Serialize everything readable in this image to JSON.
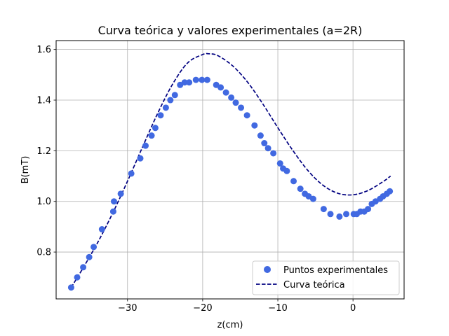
{
  "chart_data": {
    "type": "scatter",
    "title": "Curva teórica y valores experimentales (a=2R)",
    "xlabel": "z(cm)",
    "ylabel": "B(mT)",
    "xlim": [
      -39.5,
      6.8
    ],
    "ylim": [
      0.615,
      1.635
    ],
    "xticks": [
      -30,
      -20,
      -10,
      0
    ],
    "xtick_labels": [
      "−30",
      "−20",
      "−10",
      "0"
    ],
    "yticks": [
      0.8,
      1.0,
      1.2,
      1.4,
      1.6
    ],
    "ytick_labels": [
      "0.8",
      "1.0",
      "1.2",
      "1.4",
      "1.6"
    ],
    "grid": true,
    "legend_position": "bottom-right",
    "series": [
      {
        "name": "Puntos experimentales",
        "kind": "scatter",
        "color": "#4169e1",
        "x": [
          -37.5,
          -36.7,
          -35.9,
          -35.1,
          -34.5,
          -33.4,
          -31.9,
          -31.8,
          -30.9,
          -29.5,
          -28.3,
          -27.6,
          -26.8,
          -26.3,
          -25.6,
          -24.9,
          -24.3,
          -23.7,
          -23.0,
          -22.4,
          -21.8,
          -20.9,
          -20.1,
          -19.4,
          -18.2,
          -17.6,
          -16.9,
          -16.2,
          -15.6,
          -14.9,
          -14.1,
          -13.1,
          -12.3,
          -11.8,
          -11.3,
          -10.6,
          -9.7,
          -9.3,
          -8.8,
          -7.9,
          -7.0,
          -6.4,
          -5.9,
          -5.3,
          -3.9,
          -3.0,
          -1.8,
          -0.9,
          0.1,
          0.5,
          1.0,
          1.5,
          2.0,
          2.5,
          3.0,
          3.6,
          4.0,
          4.5,
          4.9
        ],
        "y": [
          0.66,
          0.7,
          0.74,
          0.78,
          0.82,
          0.89,
          0.96,
          1.0,
          1.03,
          1.11,
          1.17,
          1.22,
          1.26,
          1.29,
          1.34,
          1.37,
          1.4,
          1.42,
          1.46,
          1.47,
          1.47,
          1.48,
          1.48,
          1.48,
          1.46,
          1.45,
          1.43,
          1.41,
          1.39,
          1.37,
          1.34,
          1.3,
          1.26,
          1.23,
          1.21,
          1.19,
          1.15,
          1.13,
          1.12,
          1.08,
          1.05,
          1.03,
          1.02,
          1.01,
          0.97,
          0.95,
          0.94,
          0.95,
          0.95,
          0.95,
          0.96,
          0.96,
          0.97,
          0.99,
          1.0,
          1.01,
          1.02,
          1.03,
          1.04
        ]
      },
      {
        "name": "Curva teórica",
        "kind": "line",
        "dashed": true,
        "color": "#000080",
        "x": [
          -37.5,
          -36.0,
          -34.0,
          -32.0,
          -30.0,
          -28.0,
          -26.0,
          -24.0,
          -22.0,
          -20.0,
          -19.2,
          -18.0,
          -16.0,
          -14.0,
          -12.0,
          -10.0,
          -8.0,
          -6.0,
          -4.0,
          -2.0,
          0.0,
          2.0,
          4.0,
          5.0
        ],
        "y": [
          0.66,
          0.733,
          0.836,
          0.952,
          1.08,
          1.215,
          1.347,
          1.463,
          1.547,
          1.58,
          1.583,
          1.576,
          1.535,
          1.47,
          1.385,
          1.291,
          1.201,
          1.122,
          1.064,
          1.032,
          1.026,
          1.043,
          1.078,
          1.1
        ]
      }
    ]
  }
}
